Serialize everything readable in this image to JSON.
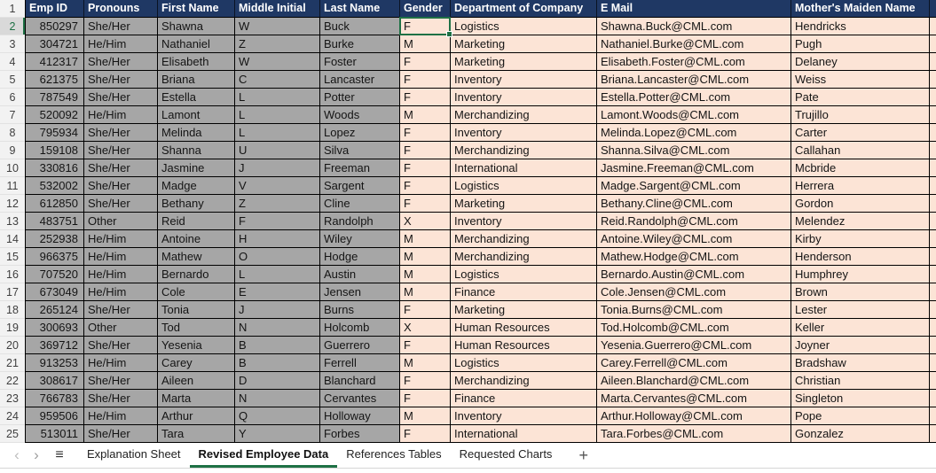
{
  "colors": {
    "header_fill": "#1F3864",
    "header_text": "#FFFFFF",
    "selected_columns_fill": "#A6A6A6",
    "data_fill": "#FCE4D6",
    "grid_border": "#000000",
    "accent_green": "#1E7145",
    "row_header_fill": "#F2F2F2",
    "active_row_header_fill": "#D9D9D9"
  },
  "table": {
    "header": {
      "n": "1",
      "cells": [
        "Emp ID",
        "Pronouns",
        "First Name",
        "Middle Initial",
        "Last Name",
        "Gender",
        "Department of Company",
        "E Mail",
        "Mother's Maiden Name"
      ]
    },
    "columns": [
      {
        "label": "Emp ID"
      },
      {
        "label": "Pronouns"
      },
      {
        "label": "First Name"
      },
      {
        "label": "Middle Initial"
      },
      {
        "label": "Last Name"
      },
      {
        "label": "Gender"
      },
      {
        "label": "Department of Company"
      },
      {
        "label": "E Mail"
      },
      {
        "label": "Mother's Maiden Name"
      }
    ],
    "rows": [
      {
        "n": "2",
        "cells": [
          "850297",
          "She/Her",
          "Shawna",
          "W",
          "Buck",
          "F",
          "Logistics",
          "Shawna.Buck@CML.com",
          "Hendricks"
        ]
      },
      {
        "n": "3",
        "cells": [
          "304721",
          "He/Him",
          "Nathaniel",
          "Z",
          "Burke",
          "M",
          "Marketing",
          "Nathaniel.Burke@CML.com",
          "Pugh"
        ]
      },
      {
        "n": "4",
        "cells": [
          "412317",
          "She/Her",
          "Elisabeth",
          "W",
          "Foster",
          "F",
          "Marketing",
          "Elisabeth.Foster@CML.com",
          "Delaney"
        ]
      },
      {
        "n": "5",
        "cells": [
          "621375",
          "She/Her",
          "Briana",
          "C",
          "Lancaster",
          "F",
          "Inventory",
          "Briana.Lancaster@CML.com",
          "Weiss"
        ]
      },
      {
        "n": "6",
        "cells": [
          "787549",
          "She/Her",
          "Estella",
          "L",
          "Potter",
          "F",
          "Inventory",
          "Estella.Potter@CML.com",
          "Pate"
        ]
      },
      {
        "n": "7",
        "cells": [
          "520092",
          "He/Him",
          "Lamont",
          "L",
          "Woods",
          "M",
          "Merchandizing",
          "Lamont.Woods@CML.com",
          "Trujillo"
        ]
      },
      {
        "n": "8",
        "cells": [
          "795934",
          "She/Her",
          "Melinda",
          "L",
          "Lopez",
          "F",
          "Inventory",
          "Melinda.Lopez@CML.com",
          "Carter"
        ]
      },
      {
        "n": "9",
        "cells": [
          "159108",
          "She/Her",
          "Shanna",
          "U",
          "Silva",
          "F",
          "Merchandizing",
          "Shanna.Silva@CML.com",
          "Callahan"
        ]
      },
      {
        "n": "10",
        "cells": [
          "330816",
          "She/Her",
          "Jasmine",
          "J",
          "Freeman",
          "F",
          "International",
          "Jasmine.Freeman@CML.com",
          "Mcbride"
        ]
      },
      {
        "n": "11",
        "cells": [
          "532002",
          "She/Her",
          "Madge",
          "V",
          "Sargent",
          "F",
          "Logistics",
          "Madge.Sargent@CML.com",
          "Herrera"
        ]
      },
      {
        "n": "12",
        "cells": [
          "612850",
          "She/Her",
          "Bethany",
          "Z",
          "Cline",
          "F",
          "Marketing",
          "Bethany.Cline@CML.com",
          "Gordon"
        ]
      },
      {
        "n": "13",
        "cells": [
          "483751",
          "Other",
          "Reid",
          "F",
          "Randolph",
          "X",
          "Inventory",
          "Reid.Randolph@CML.com",
          "Melendez"
        ]
      },
      {
        "n": "14",
        "cells": [
          "252938",
          "He/Him",
          "Antoine",
          "H",
          "Wiley",
          "M",
          "Merchandizing",
          "Antoine.Wiley@CML.com",
          "Kirby"
        ]
      },
      {
        "n": "15",
        "cells": [
          "966375",
          "He/Him",
          "Mathew",
          "O",
          "Hodge",
          "M",
          "Merchandizing",
          "Mathew.Hodge@CML.com",
          "Henderson"
        ]
      },
      {
        "n": "16",
        "cells": [
          "707520",
          "He/Him",
          "Bernardo",
          "L",
          "Austin",
          "M",
          "Logistics",
          "Bernardo.Austin@CML.com",
          "Humphrey"
        ]
      },
      {
        "n": "17",
        "cells": [
          "673049",
          "He/Him",
          "Cole",
          "E",
          "Jensen",
          "M",
          "Finance",
          "Cole.Jensen@CML.com",
          "Brown"
        ]
      },
      {
        "n": "18",
        "cells": [
          "265124",
          "She/Her",
          "Tonia",
          "J",
          "Burns",
          "F",
          "Marketing",
          "Tonia.Burns@CML.com",
          "Lester"
        ]
      },
      {
        "n": "19",
        "cells": [
          "300693",
          "Other",
          "Tod",
          "N",
          "Holcomb",
          "X",
          "Human Resources",
          "Tod.Holcomb@CML.com",
          "Keller"
        ]
      },
      {
        "n": "20",
        "cells": [
          "369712",
          "She/Her",
          "Yesenia",
          "B",
          "Guerrero",
          "F",
          "Human Resources",
          "Yesenia.Guerrero@CML.com",
          "Joyner"
        ]
      },
      {
        "n": "21",
        "cells": [
          "913253",
          "He/Him",
          "Carey",
          "B",
          "Ferrell",
          "M",
          "Logistics",
          "Carey.Ferrell@CML.com",
          "Bradshaw"
        ]
      },
      {
        "n": "22",
        "cells": [
          "308617",
          "She/Her",
          "Aileen",
          "D",
          "Blanchard",
          "F",
          "Merchandizing",
          "Aileen.Blanchard@CML.com",
          "Christian"
        ]
      },
      {
        "n": "23",
        "cells": [
          "766783",
          "She/Her",
          "Marta",
          "N",
          "Cervantes",
          "F",
          "Finance",
          "Marta.Cervantes@CML.com",
          "Singleton"
        ]
      },
      {
        "n": "24",
        "cells": [
          "959506",
          "He/Him",
          "Arthur",
          "Q",
          "Holloway",
          "M",
          "Inventory",
          "Arthur.Holloway@CML.com",
          "Pope"
        ]
      },
      {
        "n": "25",
        "cells": [
          "513011",
          "She/Her",
          "Tara",
          "Y",
          "Forbes",
          "F",
          "International",
          "Tara.Forbes@CML.com",
          "Gonzalez"
        ]
      }
    ]
  },
  "active_cell": {
    "row_number": "2",
    "column": "Gender"
  },
  "sheet_tabs": {
    "prev_glyph": "‹",
    "next_glyph": "›",
    "menu_glyph": "≡",
    "add_glyph": "+",
    "tabs": [
      {
        "label": "Explanation Sheet",
        "active": false
      },
      {
        "label": "Revised Employee Data",
        "active": true
      },
      {
        "label": "References Tables",
        "active": false
      },
      {
        "label": "Requested Charts",
        "active": false
      }
    ]
  }
}
